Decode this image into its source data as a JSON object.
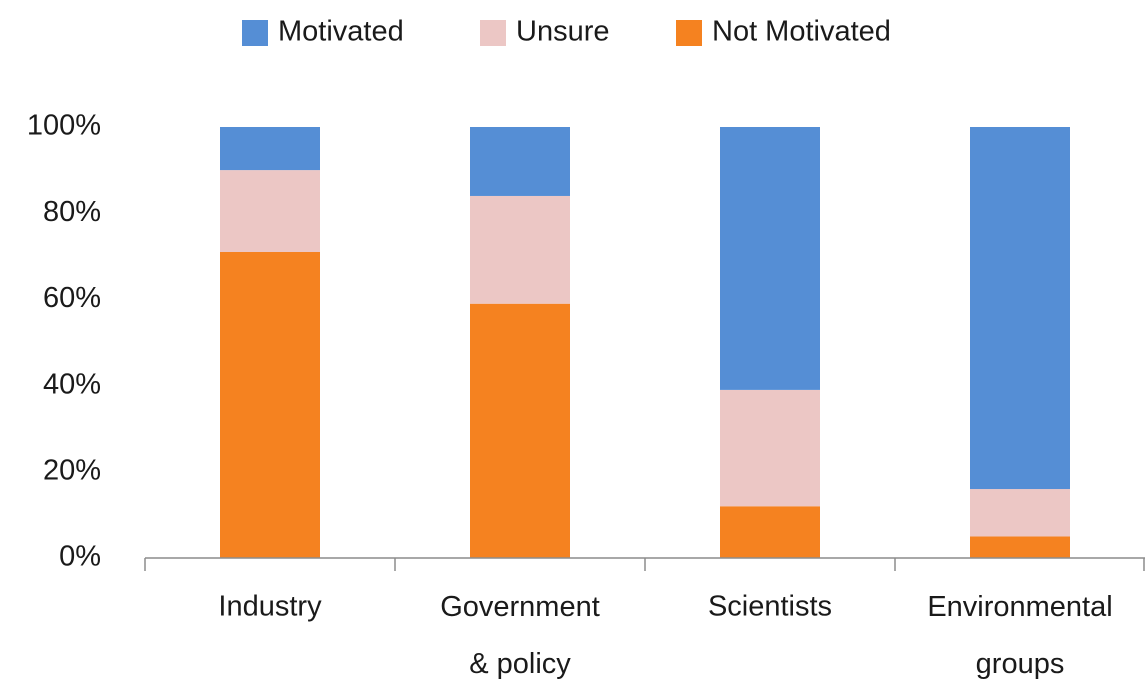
{
  "chart_data": {
    "type": "stacked-bar",
    "categories": [
      "Industry",
      "Government & policy",
      "Scientists",
      "Environmental groups"
    ],
    "series": [
      {
        "name": "Motivated",
        "color": "#558ed5",
        "values": [
          10,
          16,
          61,
          84
        ]
      },
      {
        "name": "Unsure",
        "color": "#ecc7c5",
        "values": [
          19,
          25,
          27,
          11
        ]
      },
      {
        "name": "Not Motivated",
        "color": "#f58220",
        "values": [
          71,
          59,
          12,
          5
        ]
      }
    ],
    "ylim": [
      0,
      100
    ],
    "yticks": [
      {
        "value": 0,
        "label": "0%"
      },
      {
        "value": 20,
        "label": "20%"
      },
      {
        "value": 40,
        "label": "40%"
      },
      {
        "value": 60,
        "label": "60%"
      },
      {
        "value": 80,
        "label": "80%"
      },
      {
        "value": 100,
        "label": "100%"
      }
    ],
    "legend": "top"
  }
}
